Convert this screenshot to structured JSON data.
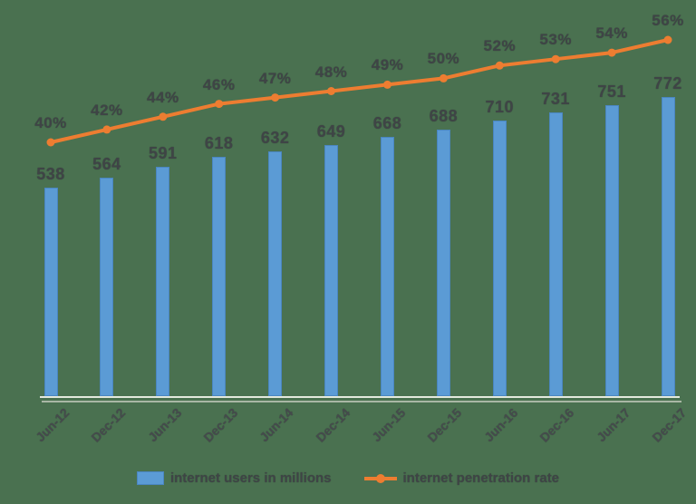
{
  "colors": {
    "background": "#4a7150",
    "bar_fill": "#5b9bd5",
    "bar_border": "#4a86c0",
    "line": "#ed7d31",
    "label_text": "#3f4446",
    "axis_line": "#e3e9dd",
    "axis_shadow": "#a9b7a5"
  },
  "legend": {
    "users_label": "internet users in millions",
    "penetration_label": "internet penetration rate"
  },
  "chart_data": {
    "type": "bar",
    "subtype": "bar-line-combo",
    "categories": [
      "Jun-12",
      "Dec-12",
      "Jun-13",
      "Dec-13",
      "Jun-14",
      "Dec-14",
      "Jun-15",
      "Dec-15",
      "Jun-16",
      "Dec-16",
      "Jun-17",
      "Dec-17"
    ],
    "series": [
      {
        "name": "internet users in millions",
        "type": "bar",
        "color": "#5b9bd5",
        "values": [
          538,
          564,
          591,
          618,
          632,
          649,
          668,
          688,
          710,
          731,
          751,
          772
        ],
        "data_labels": [
          "538",
          "564",
          "591",
          "618",
          "632",
          "649",
          "668",
          "688",
          "710",
          "731",
          "751",
          "772"
        ]
      },
      {
        "name": "internet penetration rate",
        "type": "line",
        "color": "#ed7d31",
        "unit": "%",
        "values": [
          40,
          42,
          44,
          46,
          47,
          48,
          49,
          50,
          52,
          53,
          54,
          56
        ],
        "data_labels": [
          "40%",
          "42%",
          "44%",
          "46%",
          "47%",
          "48%",
          "49%",
          "50%",
          "52%",
          "53%",
          "54%",
          "56%"
        ]
      }
    ],
    "title": "",
    "xlabel": "",
    "ylabel": "",
    "grid": false,
    "legend_position": "bottom",
    "y_axis_visible": false
  }
}
